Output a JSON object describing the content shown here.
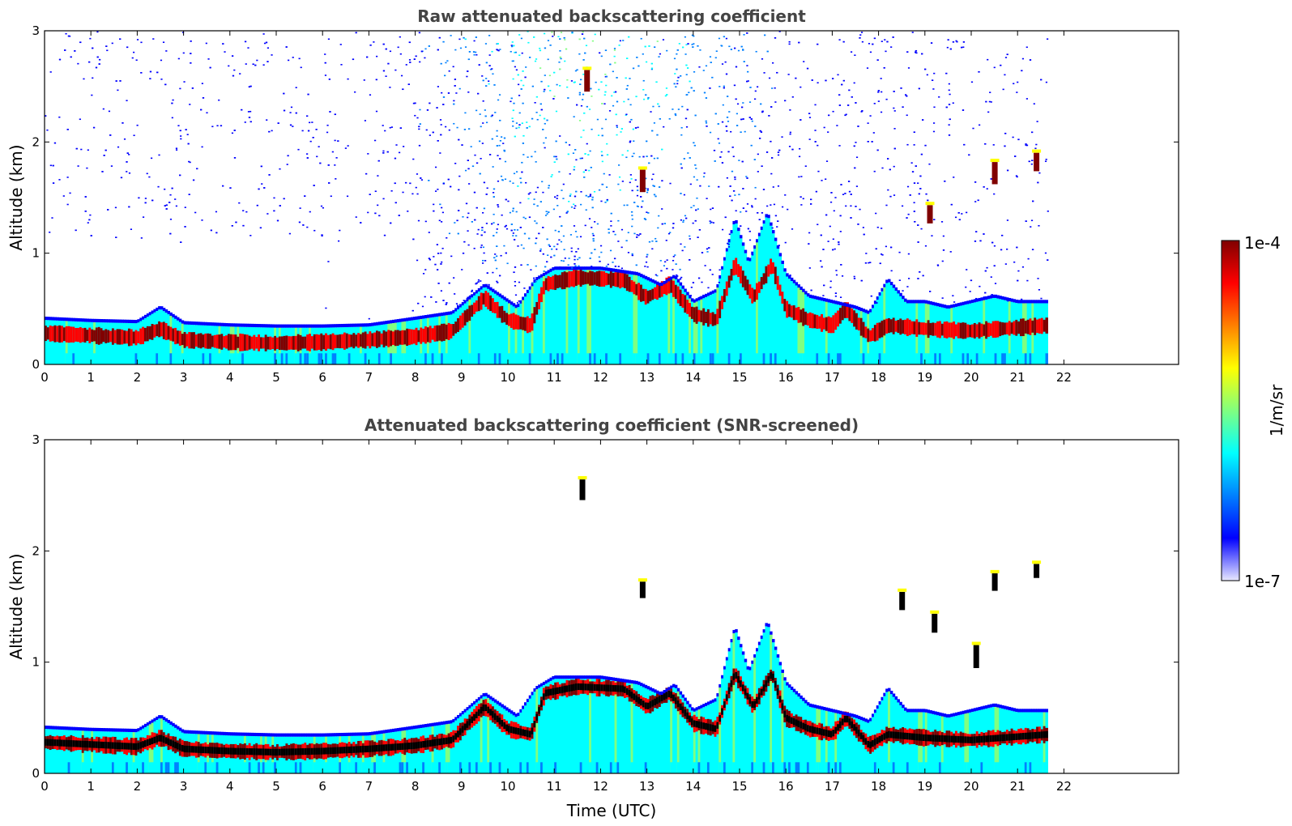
{
  "chart_data": [
    {
      "type": "heatmap",
      "title": "Raw attenuated backscattering coefficient",
      "ylabel": "Altitude (km)",
      "xlabel": "",
      "xlim": [
        0,
        24
      ],
      "ylim": [
        0,
        3
      ],
      "xticks": [
        "0",
        "1",
        "2",
        "3",
        "4",
        "5",
        "6",
        "7",
        "8",
        "9",
        "10",
        "11",
        "12",
        "13",
        "14",
        "15",
        "16",
        "17",
        "18",
        "19",
        "20",
        "21",
        "22"
      ],
      "yticks": [
        "0",
        "1",
        "2",
        "3"
      ],
      "data_end_hour": 21.65,
      "layer_top_km": [
        [
          0,
          0.4
        ],
        [
          1,
          0.38
        ],
        [
          2,
          0.37
        ],
        [
          2.5,
          0.5
        ],
        [
          3,
          0.36
        ],
        [
          4,
          0.34
        ],
        [
          5,
          0.33
        ],
        [
          6,
          0.33
        ],
        [
          7,
          0.34
        ],
        [
          8,
          0.4
        ],
        [
          8.8,
          0.45
        ],
        [
          9.5,
          0.7
        ],
        [
          10.2,
          0.5
        ],
        [
          10.6,
          0.75
        ],
        [
          11,
          0.85
        ],
        [
          12,
          0.85
        ],
        [
          12.8,
          0.8
        ],
        [
          13.3,
          0.7
        ],
        [
          13.6,
          0.78
        ],
        [
          14,
          0.55
        ],
        [
          14.5,
          0.65
        ],
        [
          14.9,
          1.3
        ],
        [
          15.2,
          0.9
        ],
        [
          15.6,
          1.35
        ],
        [
          16,
          0.8
        ],
        [
          16.5,
          0.6
        ],
        [
          17,
          0.55
        ],
        [
          17.5,
          0.5
        ],
        [
          17.8,
          0.45
        ],
        [
          18.2,
          0.75
        ],
        [
          18.6,
          0.55
        ],
        [
          19,
          0.55
        ],
        [
          19.5,
          0.5
        ],
        [
          20,
          0.55
        ],
        [
          20.5,
          0.6
        ],
        [
          21,
          0.55
        ],
        [
          21.65,
          0.55
        ]
      ],
      "layer_mid_km": [
        [
          0,
          0.28
        ],
        [
          1,
          0.26
        ],
        [
          2,
          0.24
        ],
        [
          2.5,
          0.32
        ],
        [
          3,
          0.22
        ],
        [
          4,
          0.2
        ],
        [
          5,
          0.19
        ],
        [
          6,
          0.2
        ],
        [
          7,
          0.22
        ],
        [
          8,
          0.25
        ],
        [
          8.8,
          0.3
        ],
        [
          9.5,
          0.6
        ],
        [
          10,
          0.4
        ],
        [
          10.5,
          0.35
        ],
        [
          10.8,
          0.72
        ],
        [
          11.5,
          0.78
        ],
        [
          12.5,
          0.76
        ],
        [
          13,
          0.6
        ],
        [
          13.5,
          0.72
        ],
        [
          14,
          0.45
        ],
        [
          14.5,
          0.4
        ],
        [
          14.9,
          0.9
        ],
        [
          15.3,
          0.6
        ],
        [
          15.7,
          0.9
        ],
        [
          16,
          0.5
        ],
        [
          16.5,
          0.4
        ],
        [
          17,
          0.35
        ],
        [
          17.3,
          0.5
        ],
        [
          17.8,
          0.25
        ],
        [
          18.2,
          0.35
        ],
        [
          19,
          0.32
        ],
        [
          20,
          0.3
        ],
        [
          21,
          0.33
        ],
        [
          21.65,
          0.35
        ]
      ],
      "elevated_features": [
        {
          "time": 11.7,
          "altitude_km": 2.55
        },
        {
          "time": 12.9,
          "altitude_km": 1.65
        },
        {
          "time": 20.5,
          "altitude_km": 1.72
        },
        {
          "time": 21.4,
          "altitude_km": 1.82
        },
        {
          "time": 19.1,
          "altitude_km": 1.35
        }
      ]
    },
    {
      "type": "heatmap",
      "title": "Attenuated backscattering coefficient (SNR-screened)",
      "ylabel": "Altitude (km)",
      "xlabel": "Time (UTC)",
      "xlim": [
        0,
        24
      ],
      "ylim": [
        0,
        3
      ],
      "xticks": [
        "0",
        "1",
        "2",
        "3",
        "4",
        "5",
        "6",
        "7",
        "8",
        "9",
        "10",
        "11",
        "12",
        "13",
        "14",
        "15",
        "16",
        "17",
        "18",
        "19",
        "20",
        "21",
        "22"
      ],
      "yticks": [
        "0",
        "1",
        "2",
        "3"
      ],
      "data_end_hour": 21.65,
      "elevated_features": [
        {
          "time": 11.6,
          "altitude_km": 2.55
        },
        {
          "time": 12.9,
          "altitude_km": 1.65
        },
        {
          "time": 18.5,
          "altitude_km": 1.55
        },
        {
          "time": 19.2,
          "altitude_km": 1.35
        },
        {
          "time": 20.1,
          "altitude_km": 1.05
        },
        {
          "time": 20.5,
          "altitude_km": 1.72
        },
        {
          "time": 21.4,
          "altitude_km": 1.82
        }
      ]
    }
  ],
  "colorbar": {
    "max_label": "1e-4",
    "min_label": "1e-7",
    "unit_label": "1/m/sr",
    "colormap": "jet",
    "colors": [
      "#e8e8ff",
      "#0000ff",
      "#0080ff",
      "#00ffff",
      "#80ff80",
      "#ffff00",
      "#ff8000",
      "#ff0000",
      "#800000"
    ]
  }
}
